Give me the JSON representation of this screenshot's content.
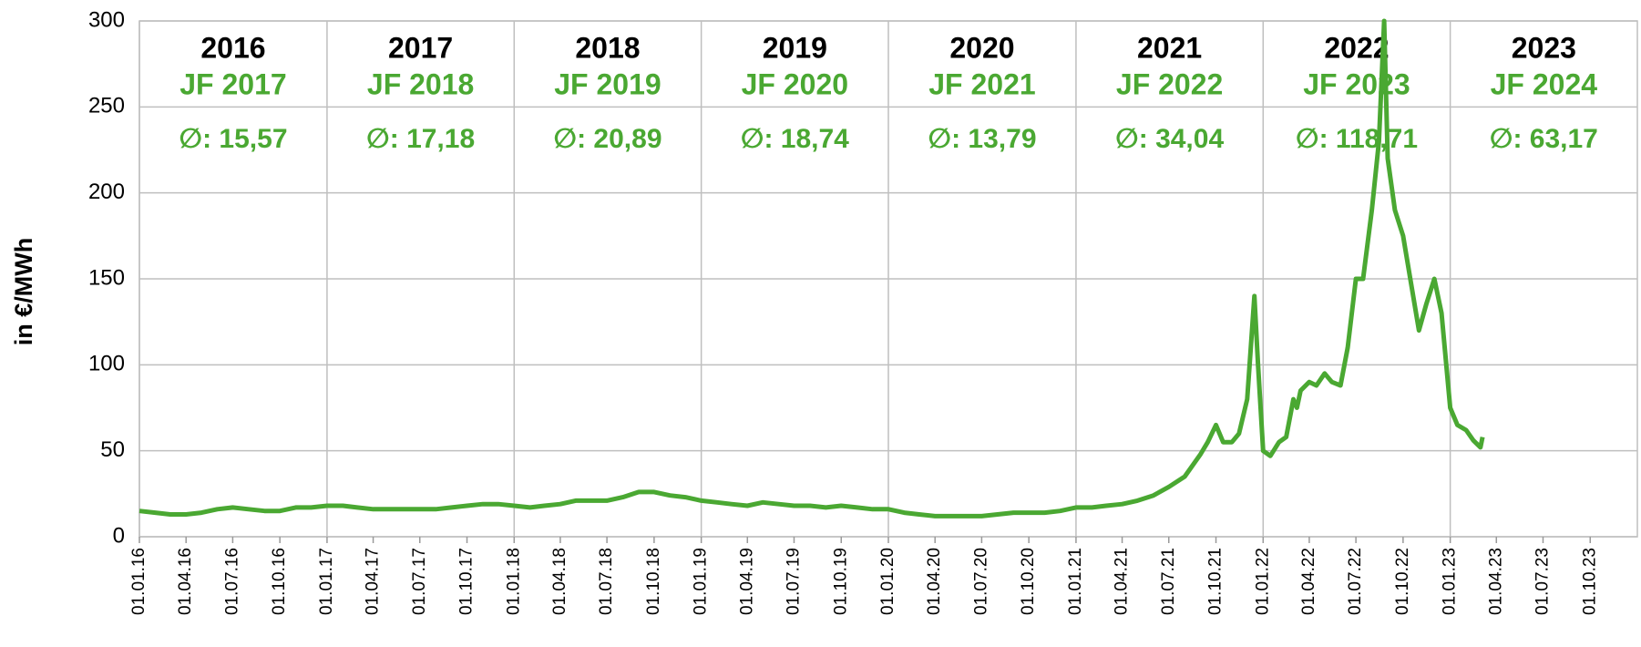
{
  "chart_data": {
    "type": "line",
    "y_label": "in €/MWh",
    "color": "#4aa832",
    "grid": true,
    "ylim": [
      0,
      300
    ],
    "yticks": [
      0,
      50,
      100,
      150,
      200,
      250,
      300
    ],
    "xlim": [
      "01.01.16",
      "01.01.24"
    ],
    "xticks": [
      "01.01.16",
      "01.04.16",
      "01.07.16",
      "01.10.16",
      "01.01.17",
      "01.04.17",
      "01.07.17",
      "01.10.17",
      "01.01.18",
      "01.04.18",
      "01.07.18",
      "01.10.18",
      "01.01.19",
      "01.04.19",
      "01.07.19",
      "01.10.19",
      "01.01.20",
      "01.04.20",
      "01.07.20",
      "01.10.20",
      "01.01.21",
      "01.04.21",
      "01.07.21",
      "01.10.21",
      "01.01.22",
      "01.04.22",
      "01.07.22",
      "01.10.22",
      "01.01.23",
      "01.04.23",
      "01.07.23",
      "01.10.23"
    ],
    "panels": [
      {
        "year": "2016",
        "jf": "JF 2017",
        "avg": "∅: 15,57"
      },
      {
        "year": "2017",
        "jf": "JF 2018",
        "avg": "∅: 17,18"
      },
      {
        "year": "2018",
        "jf": "JF 2019",
        "avg": "∅: 20,89"
      },
      {
        "year": "2019",
        "jf": "JF 2020",
        "avg": "∅: 18,74"
      },
      {
        "year": "2020",
        "jf": "JF 2021",
        "avg": "∅: 13,79"
      },
      {
        "year": "2021",
        "jf": "JF 2022",
        "avg": "∅: 34,04"
      },
      {
        "year": "2022",
        "jf": "JF 2023",
        "avg": "∅: 118,71"
      },
      {
        "year": "2023",
        "jf": "JF 2024",
        "avg": "∅: 63,17"
      }
    ],
    "x": [
      "01.01.16",
      "01.02.16",
      "01.03.16",
      "01.04.16",
      "01.05.16",
      "01.06.16",
      "01.07.16",
      "01.08.16",
      "01.09.16",
      "01.10.16",
      "01.11.16",
      "01.12.16",
      "01.01.17",
      "01.02.17",
      "01.03.17",
      "01.04.17",
      "01.05.17",
      "01.06.17",
      "01.07.17",
      "01.08.17",
      "01.09.17",
      "01.10.17",
      "01.11.17",
      "01.12.17",
      "01.01.18",
      "01.02.18",
      "01.03.18",
      "01.04.18",
      "01.05.18",
      "01.06.18",
      "01.07.18",
      "01.08.18",
      "01.09.18",
      "01.10.18",
      "01.11.18",
      "01.12.18",
      "01.01.19",
      "01.02.19",
      "01.03.19",
      "01.04.19",
      "01.05.19",
      "01.06.19",
      "01.07.19",
      "01.08.19",
      "01.09.19",
      "01.10.19",
      "01.11.19",
      "01.12.19",
      "01.01.20",
      "01.02.20",
      "01.03.20",
      "01.04.20",
      "01.05.20",
      "01.06.20",
      "01.07.20",
      "01.08.20",
      "01.09.20",
      "01.10.20",
      "01.11.20",
      "01.12.20",
      "01.01.21",
      "01.02.21",
      "01.03.21",
      "01.04.21",
      "01.05.21",
      "01.06.21",
      "01.07.21",
      "01.08.21",
      "01.09.21",
      "15.09.21",
      "01.10.21",
      "15.10.21",
      "01.11.21",
      "15.11.21",
      "01.12.21",
      "15.12.21",
      "22.12.21",
      "01.01.22",
      "15.01.22",
      "01.02.22",
      "15.02.22",
      "01.03.22",
      "08.03.22",
      "15.03.22",
      "01.04.22",
      "15.04.22",
      "01.05.22",
      "15.05.22",
      "01.06.22",
      "15.06.22",
      "01.07.22",
      "15.07.22",
      "01.08.22",
      "15.08.22",
      "25.08.22",
      "01.09.22",
      "15.09.22",
      "01.10.22",
      "15.10.22",
      "01.11.22",
      "15.11.22",
      "01.12.22",
      "15.12.22",
      "01.01.23",
      "15.01.23",
      "01.02.23",
      "15.02.23",
      "01.03.23",
      "05.03.23"
    ],
    "values": [
      15,
      14,
      13,
      13,
      14,
      16,
      17,
      16,
      15,
      15,
      17,
      17,
      18,
      18,
      17,
      16,
      16,
      16,
      16,
      16,
      17,
      18,
      19,
      19,
      18,
      17,
      18,
      19,
      21,
      21,
      21,
      23,
      26,
      26,
      24,
      23,
      21,
      20,
      19,
      18,
      20,
      19,
      18,
      18,
      17,
      18,
      17,
      16,
      16,
      14,
      13,
      12,
      12,
      12,
      12,
      13,
      14,
      14,
      14,
      15,
      17,
      17,
      18,
      19,
      21,
      24,
      29,
      35,
      48,
      55,
      65,
      55,
      55,
      60,
      80,
      140,
      100,
      50,
      47,
      55,
      58,
      80,
      75,
      85,
      90,
      88,
      95,
      90,
      88,
      110,
      150,
      150,
      190,
      230,
      300,
      220,
      190,
      175,
      150,
      120,
      135,
      150,
      130,
      75,
      65,
      62,
      56,
      52,
      58
    ]
  }
}
